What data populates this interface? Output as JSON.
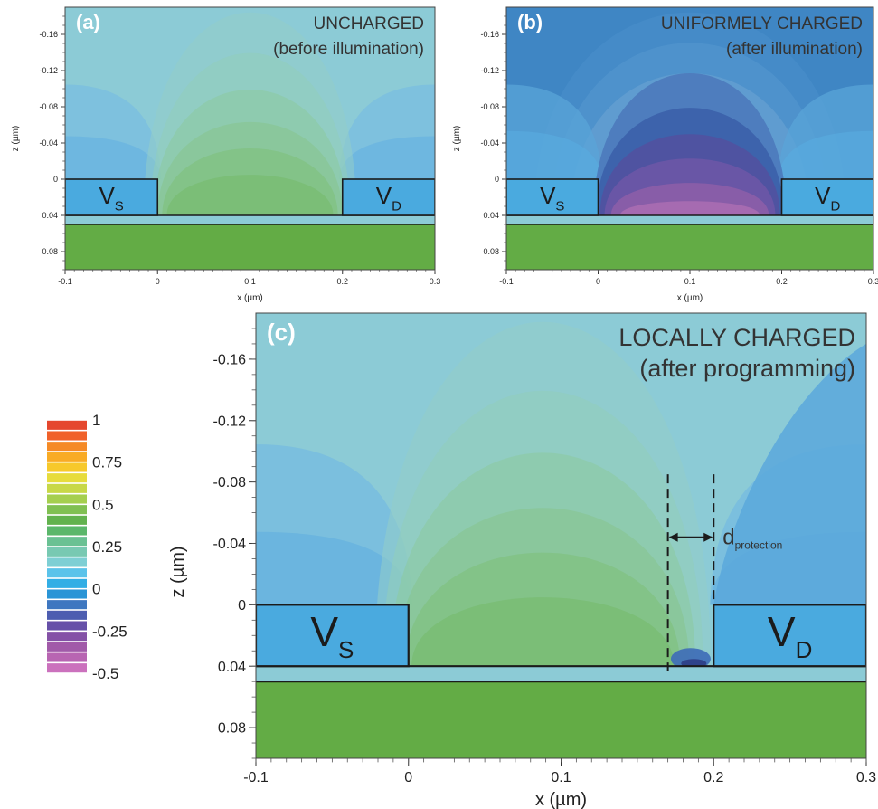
{
  "colors": {
    "background": "#8ccbd6",
    "mid_blue": "#6fb6d9",
    "electrode": "#4aaadf",
    "substrate": "#63ac45",
    "outline": "#1b1b1b",
    "panel_label": "#ffffff",
    "inner_text": "#333333"
  },
  "chart_data": [
    {
      "panel": "a",
      "type": "heatmap",
      "panel_label": "(a)",
      "title_line1": "UNCHARGED",
      "title_line2": "(before illumination)",
      "xlabel": "x (µm)",
      "ylabel": "z (µm)",
      "xlim": [
        -0.1,
        0.3
      ],
      "zlim": [
        -0.19,
        0.1
      ],
      "x_ticks": [
        -0.1,
        0,
        0.1,
        0.2,
        0.3
      ],
      "x_tick_labels": [
        "-0.1",
        "0",
        "0.1",
        "0.2",
        "0.3"
      ],
      "z_ticks": [
        -0.16,
        -0.12,
        -0.08,
        -0.04,
        0,
        0.04,
        0.08
      ],
      "z_tick_labels": [
        "-0.16",
        "-0.12",
        "-0.08",
        "-0.04",
        "0",
        "0.04",
        "0.08"
      ],
      "source_label": "V",
      "source_sub": "S",
      "drain_label": "V",
      "drain_sub": "D",
      "source_x": [
        -0.1,
        0.0
      ],
      "drain_x": [
        0.2,
        0.3
      ],
      "electrode_z": [
        0.0,
        0.04
      ],
      "channel_z": [
        0.04,
        0.05
      ],
      "substrate_z": [
        0.05,
        0.1
      ]
    },
    {
      "panel": "b",
      "type": "heatmap",
      "panel_label": "(b)",
      "title_line1": "UNIFORMELY CHARGED",
      "title_line2": "(after illumination)",
      "xlabel": "x (µm)",
      "ylabel": "z (µm)",
      "xlim": [
        -0.1,
        0.3
      ],
      "zlim": [
        -0.19,
        0.1
      ],
      "x_ticks": [
        -0.1,
        0,
        0.1,
        0.2,
        0.3
      ],
      "x_tick_labels": [
        "-0.1",
        "0",
        "0.1",
        "0.2",
        "0.3"
      ],
      "z_ticks": [
        -0.16,
        -0.12,
        -0.08,
        -0.04,
        0,
        0.04,
        0.08
      ],
      "z_tick_labels": [
        "-0.16",
        "-0.12",
        "-0.08",
        "-0.04",
        "0",
        "0.04",
        "0.08"
      ],
      "source_label": "V",
      "source_sub": "S",
      "drain_label": "V",
      "drain_sub": "D",
      "source_x": [
        -0.1,
        0.0
      ],
      "drain_x": [
        0.2,
        0.3
      ],
      "electrode_z": [
        0.0,
        0.04
      ],
      "channel_z": [
        0.04,
        0.05
      ],
      "substrate_z": [
        0.05,
        0.1
      ]
    },
    {
      "panel": "c",
      "type": "heatmap",
      "panel_label": "(c)",
      "title_line1": "LOCALLY CHARGED",
      "title_line2": "(after programming)",
      "xlabel": "x (µm)",
      "ylabel": "z (µm)",
      "xlim": [
        -0.1,
        0.3
      ],
      "zlim": [
        -0.19,
        0.1
      ],
      "x_ticks": [
        -0.1,
        0,
        0.1,
        0.2,
        0.3
      ],
      "x_tick_labels": [
        "-0.1",
        "0",
        "0.1",
        "0.2",
        "0.3"
      ],
      "z_ticks": [
        -0.16,
        -0.12,
        -0.08,
        -0.04,
        0,
        0.04,
        0.08
      ],
      "z_tick_labels": [
        "-0.16",
        "-0.12",
        "-0.08",
        "-0.04",
        "0",
        "0.04",
        "0.08"
      ],
      "source_label": "V",
      "source_sub": "S",
      "drain_label": "V",
      "drain_sub": "D",
      "source_x": [
        -0.1,
        0.0
      ],
      "drain_x": [
        0.2,
        0.3
      ],
      "electrode_z": [
        0.0,
        0.04
      ],
      "channel_z": [
        0.04,
        0.05
      ],
      "substrate_z": [
        0.05,
        0.1
      ],
      "annotation_main": "d",
      "annotation_sub": "protection",
      "annotation_x": [
        0.17,
        0.2
      ]
    }
  ],
  "colorbar": {
    "range": [
      -0.5,
      1
    ],
    "tick_values": [
      1,
      0.75,
      0.5,
      0.25,
      0,
      -0.25,
      -0.5
    ],
    "tick_labels": [
      "1",
      "0.75",
      "0.5",
      "0.25",
      "0",
      "-0.25",
      "-0.5"
    ],
    "colors": [
      "#e5472e",
      "#f0612a",
      "#f58a26",
      "#f9ab24",
      "#f7c92b",
      "#e7dc3c",
      "#c8d847",
      "#a5cf4f",
      "#80c052",
      "#62b24e",
      "#5bb76b",
      "#6ac193",
      "#78c9b2",
      "#7ecfd4",
      "#5bc3ea",
      "#32aee5",
      "#2a95d6",
      "#3e77c0",
      "#4d5db0",
      "#6650a8",
      "#8451a6",
      "#a15aa9",
      "#b865b2",
      "#cb71bd"
    ]
  }
}
